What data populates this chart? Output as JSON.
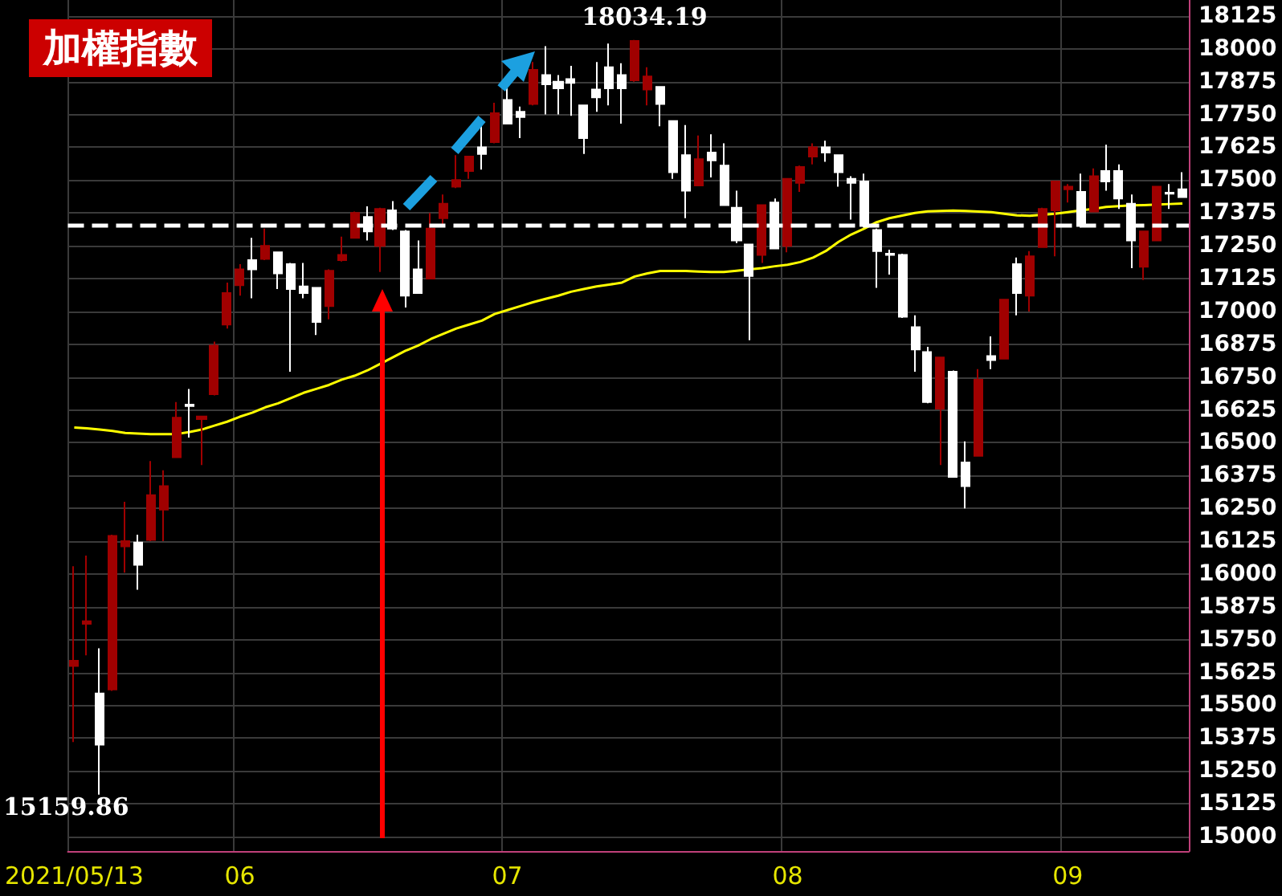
{
  "chart_data": {
    "type": "candlestick",
    "title": "加權指數",
    "categories": [
      "2021/05/13",
      null,
      null,
      null,
      null,
      null,
      null,
      null,
      null,
      null,
      null,
      null,
      null,
      "06",
      null,
      null,
      null,
      null,
      null,
      null,
      null,
      null,
      null,
      null,
      null,
      null,
      null,
      null,
      null,
      null,
      null,
      null,
      null,
      null,
      "07",
      null,
      null,
      null,
      null,
      null,
      null,
      null,
      null,
      null,
      null,
      null,
      null,
      null,
      null,
      null,
      null,
      null,
      null,
      null,
      null,
      null,
      "08",
      null,
      null,
      null,
      null,
      null,
      null,
      null,
      null,
      null,
      null,
      null,
      null,
      null,
      null,
      null,
      null,
      null,
      null,
      null,
      null,
      null,
      "09",
      null,
      null,
      null,
      null,
      null,
      null,
      null,
      null,
      null
    ],
    "ohlc": [
      [
        15650,
        16030,
        15360,
        15670
      ],
      [
        15810,
        16070,
        15690,
        15820
      ],
      [
        15545,
        15717,
        15159.86,
        15350
      ],
      [
        15560,
        16150,
        15555,
        16145
      ],
      [
        16105,
        16275,
        16005,
        16125
      ],
      [
        16120,
        16150,
        15940,
        16035
      ],
      [
        16130,
        16430,
        16125,
        16300
      ],
      [
        16245,
        16395,
        16125,
        16335
      ],
      [
        16445,
        16655,
        16445,
        16595
      ],
      [
        16645,
        16705,
        16520,
        16640
      ],
      [
        16590,
        16600,
        16415,
        16600
      ],
      [
        16685,
        16885,
        16680,
        16870
      ],
      [
        16950,
        17110,
        16935,
        17070
      ],
      [
        17100,
        17180,
        17060,
        17160
      ],
      [
        17195,
        17280,
        17050,
        17160
      ],
      [
        17200,
        17315,
        17195,
        17250
      ],
      [
        17225,
        17225,
        17085,
        17145
      ],
      [
        17180,
        17185,
        16770,
        17085
      ],
      [
        17095,
        17185,
        17050,
        17070
      ],
      [
        17090,
        17090,
        16910,
        16960
      ],
      [
        17020,
        17160,
        16970,
        17155
      ],
      [
        17195,
        17285,
        17190,
        17215
      ],
      [
        17280,
        17380,
        17280,
        17375
      ],
      [
        17360,
        17400,
        17270,
        17305
      ],
      [
        17250,
        17395,
        17150,
        17390
      ],
      [
        17385,
        17420,
        17310,
        17315
      ],
      [
        17305,
        17310,
        17015,
        17060
      ],
      [
        17160,
        17270,
        17070,
        17070
      ],
      [
        17125,
        17375,
        17125,
        17315
      ],
      [
        17355,
        17445,
        17325,
        17410
      ],
      [
        17475,
        17595,
        17470,
        17500
      ],
      [
        17535,
        17590,
        17505,
        17590
      ],
      [
        17625,
        17715,
        17540,
        17600
      ],
      [
        17645,
        17795,
        17640,
        17755
      ],
      [
        17805,
        17865,
        17715,
        17715
      ],
      [
        17760,
        17780,
        17660,
        17740
      ],
      [
        17790,
        17950,
        17785,
        17920
      ],
      [
        17900,
        18010,
        17750,
        17865
      ],
      [
        17875,
        17900,
        17750,
        17850
      ],
      [
        17885,
        17935,
        17745,
        17870
      ],
      [
        17785,
        17785,
        17600,
        17660
      ],
      [
        17845,
        17950,
        17760,
        17815
      ],
      [
        17930,
        18020,
        17785,
        17850
      ],
      [
        17900,
        17945,
        17715,
        17850
      ],
      [
        17880,
        18034.19,
        17875,
        18030
      ],
      [
        17845,
        17930,
        17785,
        17895
      ],
      [
        17855,
        17855,
        17705,
        17790
      ],
      [
        17725,
        17725,
        17505,
        17530
      ],
      [
        17595,
        17710,
        17355,
        17460
      ],
      [
        17480,
        17670,
        17480,
        17580
      ],
      [
        17605,
        17675,
        17510,
        17575
      ],
      [
        17555,
        17640,
        17405,
        17405
      ],
      [
        17395,
        17460,
        17260,
        17270
      ],
      [
        17255,
        17255,
        16890,
        17135
      ],
      [
        17215,
        17405,
        17185,
        17405
      ],
      [
        17415,
        17430,
        17240,
        17240
      ],
      [
        17250,
        17505,
        17225,
        17505
      ],
      [
        17490,
        17555,
        17455,
        17550
      ],
      [
        17590,
        17640,
        17560,
        17625
      ],
      [
        17625,
        17650,
        17570,
        17605
      ],
      [
        17595,
        17595,
        17475,
        17530
      ],
      [
        17505,
        17515,
        17350,
        17490
      ],
      [
        17495,
        17525,
        17320,
        17325
      ],
      [
        17310,
        17315,
        17090,
        17230
      ],
      [
        17220,
        17235,
        17140,
        17215
      ],
      [
        17215,
        17220,
        16975,
        16980
      ],
      [
        16940,
        16985,
        16770,
        16855
      ],
      [
        16845,
        16865,
        16650,
        16655
      ],
      [
        16630,
        16825,
        16415,
        16825
      ],
      [
        16770,
        16775,
        16370,
        16370
      ],
      [
        16425,
        16505,
        16250,
        16335
      ],
      [
        16450,
        16780,
        16450,
        16740
      ],
      [
        16830,
        16905,
        16780,
        16815
      ],
      [
        16820,
        17045,
        16820,
        17045
      ],
      [
        17180,
        17205,
        16985,
        17070
      ],
      [
        17060,
        17230,
        17000,
        17210
      ],
      [
        17245,
        17395,
        17245,
        17390
      ],
      [
        17385,
        17495,
        17210,
        17495
      ],
      [
        17465,
        17485,
        17415,
        17475
      ],
      [
        17455,
        17525,
        17320,
        17325
      ],
      [
        17380,
        17545,
        17380,
        17515
      ],
      [
        17535,
        17635,
        17460,
        17495
      ],
      [
        17535,
        17560,
        17390,
        17430
      ],
      [
        17410,
        17445,
        17165,
        17270
      ],
      [
        17170,
        17305,
        17120,
        17305
      ],
      [
        17270,
        17475,
        17270,
        17475
      ],
      [
        17452,
        17485,
        17390,
        17448
      ],
      [
        17465,
        17530,
        17435,
        17435
      ]
    ],
    "colors": [
      "#a00000",
      "#a00000",
      "#ffffff",
      "#a00000",
      "#a00000",
      "#ffffff",
      "#a00000",
      "#a00000",
      "#a00000",
      "#ffffff",
      "#a00000",
      "#a00000",
      "#a00000",
      "#a00000",
      "#ffffff",
      "#a00000",
      "#ffffff",
      "#ffffff",
      "#ffffff",
      "#ffffff",
      "#a00000",
      "#a00000",
      "#a00000",
      "#ffffff",
      "#a00000",
      "#ffffff",
      "#ffffff",
      "#ffffff",
      "#a00000",
      "#a00000",
      "#a00000",
      "#a00000",
      "#ffffff",
      "#a00000",
      "#ffffff",
      "#ffffff",
      "#a00000",
      "#ffffff",
      "#ffffff",
      "#ffffff",
      "#ffffff",
      "#ffffff",
      "#ffffff",
      "#ffffff",
      "#a00000",
      "#a00000",
      "#ffffff",
      "#ffffff",
      "#ffffff",
      "#a00000",
      "#ffffff",
      "#ffffff",
      "#ffffff",
      "#ffffff",
      "#a00000",
      "#ffffff",
      "#a00000",
      "#a00000",
      "#a00000",
      "#ffffff",
      "#ffffff",
      "#ffffff",
      "#ffffff",
      "#ffffff",
      "#ffffff",
      "#ffffff",
      "#ffffff",
      "#ffffff",
      "#a00000",
      "#ffffff",
      "#ffffff",
      "#a00000",
      "#ffffff",
      "#a00000",
      "#ffffff",
      "#a00000",
      "#a00000",
      "#a00000",
      "#a00000",
      "#ffffff",
      "#a00000",
      "#ffffff",
      "#ffffff",
      "#ffffff",
      "#a00000",
      "#a00000",
      "#ffffff",
      "#ffffff"
    ],
    "series": [
      {
        "type": "line",
        "color": "#ffff00",
        "values": [
          16558,
          16555,
          16550,
          16545,
          16537,
          16535,
          16533,
          16533,
          16533,
          16540,
          16550,
          16565,
          16580,
          16599,
          16615,
          16635,
          16650,
          16670,
          16690,
          16705,
          16720,
          16740,
          16755,
          16775,
          16800,
          16825,
          16850,
          16870,
          16895,
          16915,
          16935,
          16950,
          16965,
          16990,
          17005,
          17020,
          17035,
          17048,
          17060,
          17075,
          17085,
          17095,
          17102,
          17110,
          17133,
          17145,
          17154,
          17154,
          17154,
          17152,
          17150,
          17150,
          17155,
          17160,
          17165,
          17172,
          17178,
          17188,
          17205,
          17230,
          17265,
          17293,
          17315,
          17340,
          17355,
          17365,
          17375,
          17381,
          17383,
          17384,
          17383,
          17380,
          17378,
          17372,
          17366,
          17364,
          17368,
          17372,
          17378,
          17385,
          17390,
          17398,
          17401,
          17404,
          17405,
          17407,
          17409,
          17411
        ]
      }
    ],
    "ylim": [
      14945,
      18186
    ],
    "yticks": [
      15000,
      15125,
      15250,
      15375,
      15500,
      15625,
      15750,
      15875,
      16000,
      16125,
      16250,
      16375,
      16500,
      16625,
      16750,
      16875,
      17000,
      17125,
      17250,
      17375,
      17500,
      17625,
      17750,
      17875,
      18000,
      18125
    ],
    "grid": true,
    "ref_lines": [
      {
        "axis": "y",
        "value": 17326,
        "color": "#ffffff",
        "line_style": "dashed"
      }
    ],
    "annotations": [
      {
        "text": "18034.19",
        "y": 18034.19
      },
      "15159.86"
    ]
  }
}
